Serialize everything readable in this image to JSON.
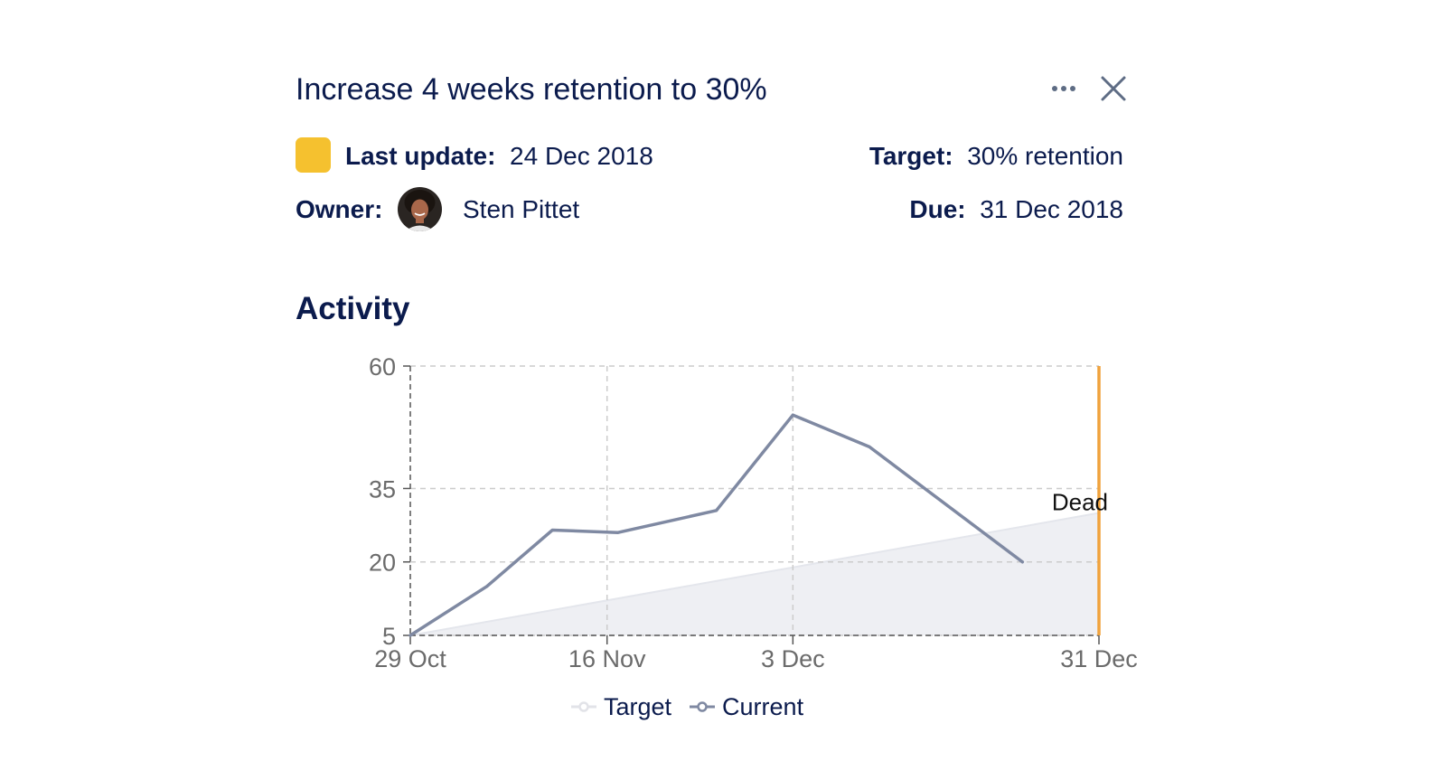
{
  "header": {
    "title": "Increase 4 weeks retention to 30%",
    "more_icon": "ellipsis-icon",
    "close_icon": "close-icon"
  },
  "meta": {
    "status_color": "#f5c12f",
    "last_update_label": "Last update:",
    "last_update_value": "24 Dec 2018",
    "owner_label": "Owner:",
    "owner_name": "Sten Pittet",
    "target_label": "Target:",
    "target_value": "30% retention",
    "due_label": "Due:",
    "due_value": "31 Dec 2018"
  },
  "activity": {
    "title": "Activity"
  },
  "colors": {
    "current_line": "#7f89a2",
    "target_fill": "#eeeff3",
    "deadline": "#f0a23c",
    "grid": "#cccccc",
    "tick": "#6b6b6b"
  },
  "chart_data": {
    "type": "line",
    "title": "Activity",
    "xlabel": "",
    "ylabel": "",
    "ylim": [
      5,
      60
    ],
    "xlim": [
      "29 Oct",
      "31 Dec"
    ],
    "x_ticks": [
      {
        "label": "29 Oct",
        "day": 0
      },
      {
        "label": "16 Nov",
        "day": 18
      },
      {
        "label": "3 Dec",
        "day": 35
      },
      {
        "label": "31 Dec",
        "day": 63
      }
    ],
    "x_end_day": 63,
    "y_ticks": [
      60,
      35,
      20,
      5
    ],
    "grid": true,
    "series": [
      {
        "name": "Target",
        "style": "area",
        "points": [
          {
            "day": 0,
            "value": 5
          },
          {
            "day": 63,
            "value": 30
          }
        ]
      },
      {
        "name": "Current",
        "style": "line",
        "points": [
          {
            "day": 0,
            "value": 5
          },
          {
            "day": 7,
            "value": 15
          },
          {
            "day": 13,
            "value": 26.5
          },
          {
            "day": 19,
            "value": 26
          },
          {
            "day": 28,
            "value": 30.5
          },
          {
            "day": 35,
            "value": 50
          },
          {
            "day": 42,
            "value": 43.5
          },
          {
            "day": 56,
            "value": 20
          }
        ]
      }
    ],
    "annotations": [
      {
        "type": "vertical-line",
        "day": 63,
        "label": "Dead"
      }
    ],
    "legend": {
      "position": "bottom-center",
      "items": [
        "Target",
        "Current"
      ]
    }
  }
}
